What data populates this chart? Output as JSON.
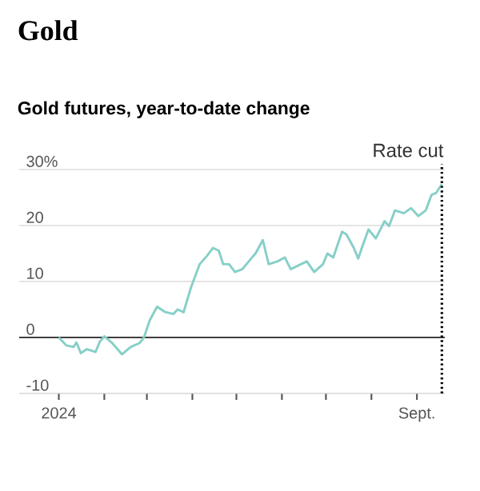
{
  "chart_data": {
    "type": "line",
    "title": "Gold",
    "subtitle": "Gold futures, year-to-date change",
    "x": [
      "2024-01-01",
      "2024-01-06",
      "2024-01-11",
      "2024-01-13",
      "2024-01-16",
      "2024-01-20",
      "2024-01-26",
      "2024-01-29",
      "2024-02-01",
      "2024-02-06",
      "2024-02-13",
      "2024-02-19",
      "2024-02-25",
      "2024-02-28",
      "2024-03-03",
      "2024-03-08",
      "2024-03-13",
      "2024-03-19",
      "2024-03-22",
      "2024-03-26",
      "2024-03-31",
      "2024-04-06",
      "2024-04-11",
      "2024-04-15",
      "2024-04-19",
      "2024-04-22",
      "2024-04-26",
      "2024-04-30",
      "2024-05-05",
      "2024-05-11",
      "2024-05-14",
      "2024-05-19",
      "2024-05-23",
      "2024-05-29",
      "2024-06-03",
      "2024-06-07",
      "2024-06-14",
      "2024-06-18",
      "2024-06-23",
      "2024-06-29",
      "2024-07-02",
      "2024-07-06",
      "2024-07-12",
      "2024-07-15",
      "2024-07-20",
      "2024-07-23",
      "2024-07-26",
      "2024-07-30",
      "2024-08-04",
      "2024-08-10",
      "2024-08-13",
      "2024-08-17",
      "2024-08-23",
      "2024-08-28",
      "2024-09-02",
      "2024-09-07",
      "2024-09-11",
      "2024-09-14",
      "2024-09-18"
    ],
    "series": [
      {
        "color": "#86cfc8",
        "values": [
          0,
          -1.4,
          -1.7,
          -0.9,
          -2.8,
          -2.1,
          -2.6,
          -0.7,
          0.2,
          -0.9,
          -3.0,
          -1.7,
          -1.0,
          0,
          3.1,
          5.5,
          4.6,
          4.2,
          5.0,
          4.5,
          8.9,
          13.1,
          14.6,
          16.0,
          15.5,
          13.1,
          13.1,
          11.7,
          12.2,
          14.1,
          15.0,
          17.4,
          13.1,
          13.6,
          14.3,
          12.2,
          13.1,
          13.6,
          11.7,
          13.1,
          15.0,
          14.3,
          18.9,
          18.4,
          16.0,
          14.1,
          16.4,
          19.3,
          17.7,
          20.8,
          19.9,
          22.7,
          22.2,
          23.1,
          21.7,
          22.7,
          25.5,
          25.8,
          27.4
        ]
      }
    ],
    "xlim": [
      "2023-12-05",
      "2024-09-20"
    ],
    "xticks": [
      {
        "value": "2024-01-01",
        "label": "2024"
      },
      {
        "value": "2024-02-01",
        "label": null
      },
      {
        "value": "2024-03-01",
        "label": null
      },
      {
        "value": "2024-04-01",
        "label": null
      },
      {
        "value": "2024-05-01",
        "label": null
      },
      {
        "value": "2024-06-01",
        "label": null
      },
      {
        "value": "2024-07-01",
        "label": null
      },
      {
        "value": "2024-08-01",
        "label": null
      },
      {
        "value": "2024-09-01",
        "label": "Sept."
      }
    ],
    "ylim": [
      -10,
      31
    ],
    "yticks": [
      {
        "value": 30,
        "label": "30%"
      },
      20,
      10,
      0,
      -10
    ],
    "grid": "y",
    "ref_lines": [
      {
        "axis": "x",
        "value": "2024-09-18",
        "label": "Rate cut",
        "line_style": "dotted",
        "color": "#000000"
      }
    ]
  }
}
